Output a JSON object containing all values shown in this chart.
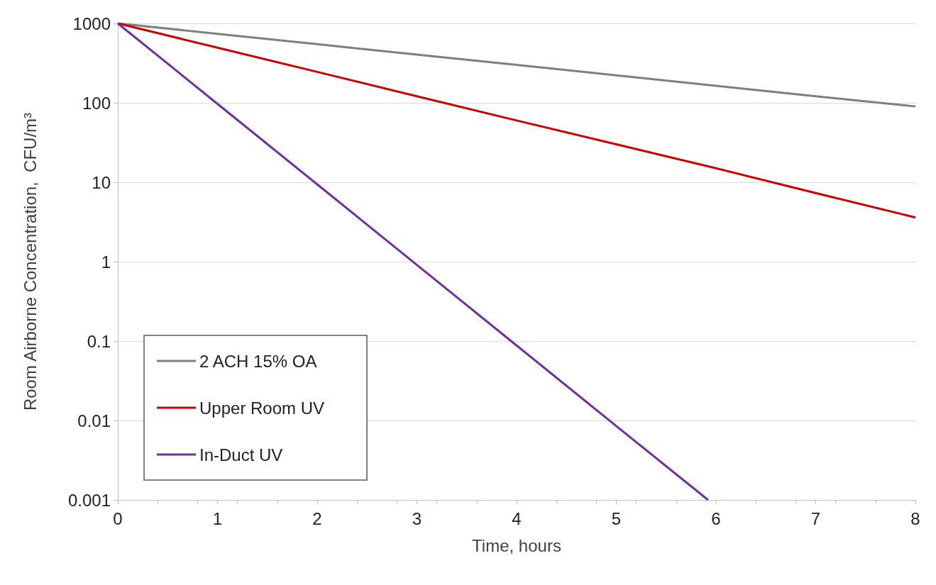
{
  "chart_data": {
    "type": "line",
    "xlabel": "Time, hours",
    "ylabel": "Room Airborne Concentration,  CFU/m³",
    "log": "y",
    "grid": "y",
    "legend": "bottom left",
    "marker": "none",
    "line_style": "solid",
    "xlim": [
      0,
      8
    ],
    "xticks": [
      0,
      1,
      2,
      3,
      4,
      5,
      6,
      7,
      8
    ],
    "ylim": [
      0.001,
      1000
    ],
    "yticks": [
      0.001,
      0.01,
      0.1,
      1,
      10,
      100,
      1000
    ],
    "series": [
      {
        "name": "2 ACH 15% OA",
        "color": "#7f7f7f",
        "x": [
          0,
          1,
          2,
          3,
          4,
          5,
          6,
          7,
          8
        ],
        "values": [
          1000,
          740,
          547,
          405,
          300,
          222,
          164,
          121,
          90
        ]
      },
      {
        "name": "Upper Room UV",
        "color": "#cc0000",
        "x": [
          0,
          1,
          2,
          3,
          4,
          5,
          6,
          7,
          8
        ],
        "values": [
          1000,
          495,
          245,
          121,
          60,
          30,
          15,
          7.3,
          3.6
        ]
      },
      {
        "name": "In-Duct UV",
        "color": "#7030a0",
        "x": [
          0,
          1,
          2,
          3,
          4,
          5,
          5.92
        ],
        "values": [
          1000,
          97,
          9.4,
          0.91,
          0.088,
          0.0085,
          0.001
        ]
      }
    ]
  }
}
